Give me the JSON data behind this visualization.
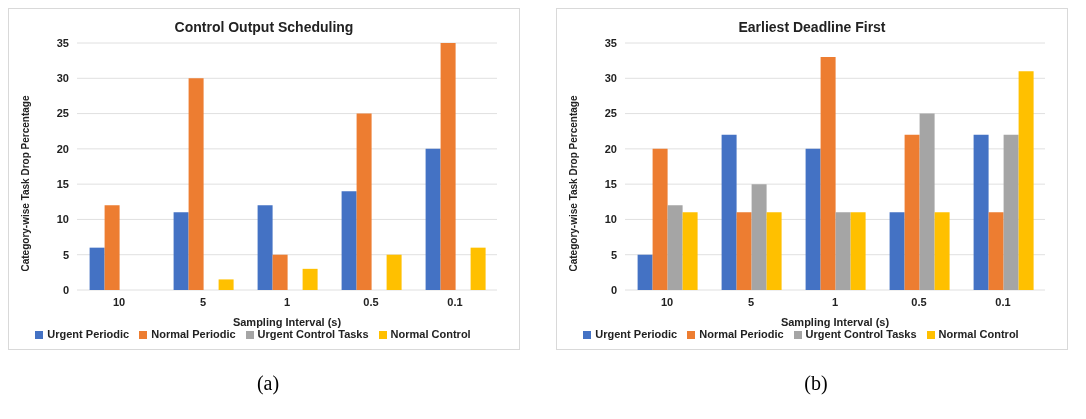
{
  "chart_data": [
    {
      "type": "bar",
      "title": "Control Output Scheduling",
      "xlabel": "Sampling Interval (s)",
      "ylabel": "Category-wise Task Drop Percentage",
      "categories": [
        "10",
        "5",
        "1",
        "0.5",
        "0.1"
      ],
      "series": [
        {
          "name": "Urgent Periodic",
          "color": "#4472c4",
          "values": [
            6,
            11,
            12,
            14,
            20
          ]
        },
        {
          "name": "Normal Periodic",
          "color": "#ed7d31",
          "values": [
            12,
            30,
            5,
            25,
            35
          ]
        },
        {
          "name": "Urgent Control Tasks",
          "color": "#a5a5a5",
          "values": [
            0,
            0,
            0,
            0,
            0
          ]
        },
        {
          "name": "Normal Control",
          "color": "#ffc000",
          "values": [
            0,
            1.5,
            3,
            5,
            6
          ]
        }
      ],
      "ylim": [
        0,
        35
      ],
      "yticks": [
        0,
        5,
        10,
        15,
        20,
        25,
        30,
        35
      ],
      "grid": "y",
      "legend": "bottom",
      "annotations": [
        "(a)"
      ]
    },
    {
      "type": "bar",
      "title": "Earliest Deadline First",
      "xlabel": "Sampling Interval (s)",
      "ylabel": "Category-wise Task Drop Percentage",
      "categories": [
        "10",
        "5",
        "1",
        "0.5",
        "0.1"
      ],
      "series": [
        {
          "name": "Urgent Periodic",
          "color": "#4472c4",
          "values": [
            5,
            22,
            20,
            11,
            22
          ]
        },
        {
          "name": "Normal Periodic",
          "color": "#ed7d31",
          "values": [
            20,
            11,
            33,
            22,
            11
          ]
        },
        {
          "name": "Urgent Control Tasks",
          "color": "#a5a5a5",
          "values": [
            12,
            15,
            11,
            25,
            22
          ]
        },
        {
          "name": "Normal Control",
          "color": "#ffc000",
          "values": [
            11,
            11,
            11,
            11,
            31
          ]
        }
      ],
      "ylim": [
        0,
        35
      ],
      "yticks": [
        0,
        5,
        10,
        15,
        20,
        25,
        30,
        35
      ],
      "grid": "y",
      "legend": "bottom",
      "annotations": [
        "(b)"
      ]
    }
  ]
}
